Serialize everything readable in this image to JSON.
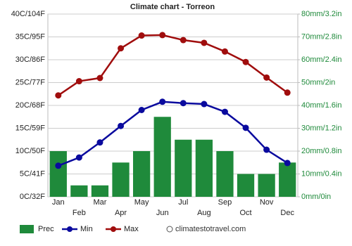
{
  "chart_data": {
    "type": "combo",
    "title": "Climate chart - Torreon",
    "categories": [
      "Jan",
      "Feb",
      "Mar",
      "Apr",
      "May",
      "Jun",
      "Jul",
      "Aug",
      "Sep",
      "Oct",
      "Nov",
      "Dec"
    ],
    "series": [
      {
        "name": "Prec",
        "type": "bar",
        "axis": "y2",
        "color": "#1f8a3b",
        "values": [
          20,
          5,
          5,
          15,
          20,
          35,
          25,
          25,
          20,
          10,
          10,
          15
        ]
      },
      {
        "name": "Min",
        "type": "line",
        "color": "#0a0a9e",
        "values": [
          6.8,
          8.6,
          11.9,
          15.5,
          19.0,
          20.8,
          20.5,
          20.3,
          18.6,
          15.1,
          10.3,
          7.4
        ]
      },
      {
        "name": "Max",
        "type": "line",
        "color": "#a00d0d",
        "values": [
          22.2,
          25.3,
          26.0,
          32.5,
          35.3,
          35.4,
          34.3,
          33.7,
          31.8,
          29.5,
          26.1,
          22.8
        ]
      }
    ],
    "ylim": [
      0,
      40
    ],
    "yticks": [
      {
        "value": 0,
        "label": "0C/32F"
      },
      {
        "value": 5,
        "label": "5C/41F"
      },
      {
        "value": 10,
        "label": "10C/50F"
      },
      {
        "value": 15,
        "label": "15C/59F"
      },
      {
        "value": 20,
        "label": "20C/68F"
      },
      {
        "value": 25,
        "label": "25C/77F"
      },
      {
        "value": 30,
        "label": "30C/86F"
      },
      {
        "value": 35,
        "label": "35C/95F"
      },
      {
        "value": 40,
        "label": "40C/104F"
      }
    ],
    "y2lim": [
      0,
      80
    ],
    "y2ticks": [
      {
        "value": 0,
        "label": "0mm/0in"
      },
      {
        "value": 10,
        "label": "10mm/0.4in"
      },
      {
        "value": 20,
        "label": "20mm/0.8in"
      },
      {
        "value": 30,
        "label": "30mm/1.2in"
      },
      {
        "value": 40,
        "label": "40mm/1.6in"
      },
      {
        "value": 50,
        "label": "50mm/2in"
      },
      {
        "value": 60,
        "label": "60mm/2.4in"
      },
      {
        "value": 70,
        "label": "70mm/2.8in"
      },
      {
        "value": 80,
        "label": "80mm/3.2in"
      }
    ],
    "grid": true,
    "watermark": "climatestotravel.com"
  }
}
